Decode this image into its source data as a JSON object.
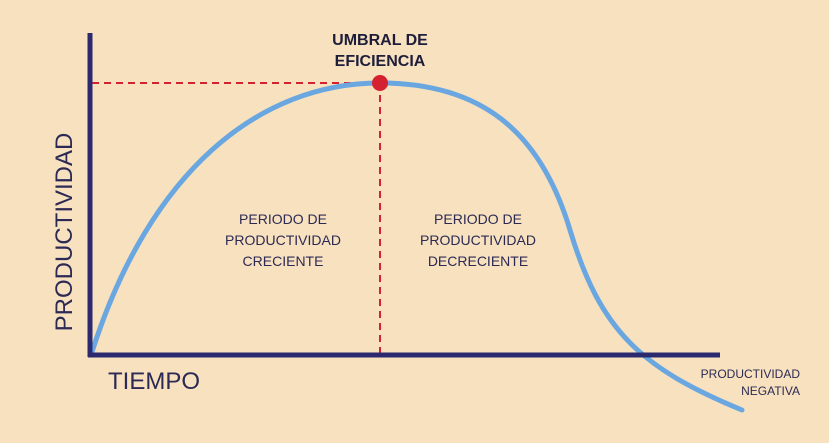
{
  "labels": {
    "threshold_line1": "UMBRAL DE",
    "threshold_line2": "EFICIENCIA",
    "x_axis": "TIEMPO",
    "y_axis": "PRODUCTIVIDAD",
    "growing_line1": "PERIODO DE",
    "growing_line2": "PRODUCTIVIDAD",
    "growing_line3": "CRECIENTE",
    "declining_line1": "PERIODO DE",
    "declining_line2": "PRODUCTIVIDAD",
    "declining_line3": "DECRECIENTE",
    "negative_line1": "PRODUCTIVIDAD",
    "negative_line2": "NEGATIVA"
  },
  "colors": {
    "background": "#f7e1bf",
    "axis": "#2c2a6e",
    "curve": "#6aa7e0",
    "threshold": "#d42230",
    "text": "#2c2a54"
  }
}
